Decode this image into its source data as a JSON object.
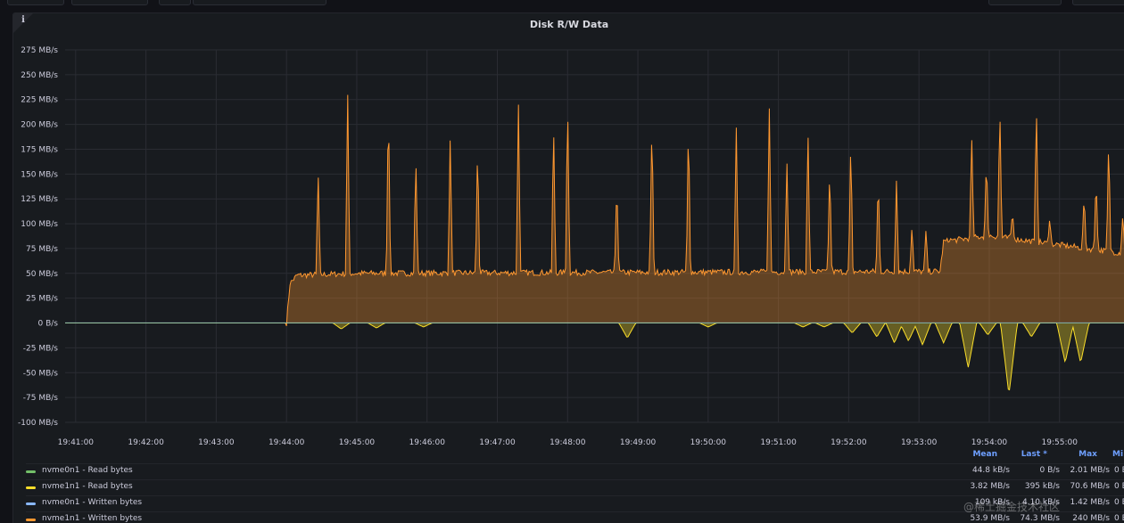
{
  "panel": {
    "title": "Disk R/W Data",
    "info_icon": "info-icon"
  },
  "watermark": "@稀土掘金技术社区",
  "legend": {
    "headers": [
      "Mean",
      "Last *",
      "Max",
      "Mi"
    ],
    "rows": [
      {
        "name": "nvme0n1 - Read bytes",
        "color": "#73bf69",
        "mean": "44.8 kB/s",
        "last": "0 B/s",
        "max": "2.01 MB/s",
        "min": "0 B/"
      },
      {
        "name": "nvme1n1 - Read bytes",
        "color": "#fade2a",
        "mean": "3.82 MB/s",
        "last": "395 kB/s",
        "max": "70.6 MB/s",
        "min": "0 B/"
      },
      {
        "name": "nvme0n1 - Written bytes",
        "color": "#8ab8ff",
        "mean": "109 kB/s",
        "last": "4.10 kB/s",
        "max": "1.42 MB/s",
        "min": "0 B/"
      },
      {
        "name": "nvme1n1 - Written bytes",
        "color": "#ff9830",
        "mean": "53.9 MB/s",
        "last": "74.3 MB/s",
        "max": "240 MB/s",
        "min": "0 B/"
      }
    ]
  },
  "chart_data": {
    "type": "area",
    "title": "Disk R/W Data",
    "ylim": [
      -100,
      275
    ],
    "y_ticks": [
      275,
      250,
      225,
      200,
      175,
      150,
      125,
      100,
      75,
      50,
      25,
      0,
      -25,
      -50,
      -75,
      -100
    ],
    "y_tick_labels": [
      "275 MB/s",
      "250 MB/s",
      "225 MB/s",
      "200 MB/s",
      "175 MB/s",
      "150 MB/s",
      "125 MB/s",
      "100 MB/s",
      "75 MB/s",
      "50 MB/s",
      "25 MB/s",
      "0 B/s",
      "-25 MB/s",
      "-50 MB/s",
      "-75 MB/s",
      "-100 MB/s"
    ],
    "x_tick_labels": [
      "19:41:00",
      "19:42:00",
      "19:43:00",
      "19:44:00",
      "19:45:00",
      "19:46:00",
      "19:47:00",
      "19:48:00",
      "19:49:00",
      "19:50:00",
      "19:51:00",
      "19:52:00",
      "19:53:00",
      "19:54:00",
      "19:55:00"
    ],
    "x_range_minutes": [
      40.85,
      55.93
    ],
    "x_tick_minutes": [
      41,
      42,
      43,
      44,
      45,
      46,
      47,
      48,
      49,
      50,
      51,
      52,
      53,
      54,
      55
    ],
    "grid": true,
    "legend_position": "bottom",
    "series": [
      {
        "name": "nvme1n1 - Written bytes",
        "color": "#ff9830",
        "base_segments": [
          [
            40.85,
            0
          ],
          [
            44.0,
            0
          ],
          [
            44.05,
            40
          ],
          [
            44.15,
            48
          ],
          [
            45.0,
            50
          ],
          [
            53.3,
            52
          ],
          [
            53.35,
            82
          ],
          [
            54.0,
            88
          ],
          [
            55.93,
            70
          ]
        ],
        "spikes": [
          [
            44.45,
            155
          ],
          [
            44.87,
            238
          ],
          [
            45.45,
            228
          ],
          [
            45.84,
            168
          ],
          [
            46.33,
            188
          ],
          [
            46.72,
            183
          ],
          [
            47.3,
            225
          ],
          [
            47.8,
            205
          ],
          [
            48.0,
            230
          ],
          [
            48.7,
            145
          ],
          [
            49.2,
            210
          ],
          [
            49.72,
            208
          ],
          [
            50.4,
            200
          ],
          [
            50.87,
            217
          ],
          [
            51.12,
            165
          ],
          [
            51.42,
            200
          ],
          [
            51.73,
            160
          ],
          [
            52.03,
            185
          ],
          [
            52.42,
            150
          ],
          [
            52.68,
            145
          ],
          [
            52.9,
            98
          ],
          [
            53.1,
            95
          ],
          [
            53.45,
            85
          ],
          [
            53.75,
            190
          ],
          [
            53.96,
            165
          ],
          [
            54.15,
            220
          ],
          [
            54.33,
            112
          ],
          [
            54.67,
            222
          ],
          [
            54.86,
            105
          ],
          [
            55.35,
            130
          ],
          [
            55.52,
            148
          ],
          [
            55.7,
            187
          ],
          [
            55.9,
            110
          ]
        ]
      },
      {
        "name": "nvme1n1 - Read bytes",
        "color": "#fade2a",
        "dips": [
          [
            44.78,
            -6
          ],
          [
            45.28,
            -5
          ],
          [
            45.95,
            -4
          ],
          [
            48.85,
            -15
          ],
          [
            50.0,
            -4
          ],
          [
            51.35,
            -4
          ],
          [
            51.65,
            -4
          ],
          [
            52.05,
            -10
          ],
          [
            52.4,
            -14
          ],
          [
            52.65,
            -20
          ],
          [
            52.85,
            -18
          ],
          [
            53.05,
            -22
          ],
          [
            53.35,
            -20
          ],
          [
            53.7,
            -45
          ],
          [
            53.98,
            -12
          ],
          [
            54.28,
            -72
          ],
          [
            54.6,
            -14
          ],
          [
            55.08,
            -40
          ],
          [
            55.3,
            -40
          ]
        ]
      },
      {
        "name": "nvme0n1 - Written bytes",
        "color": "#8ab8ff",
        "constant": 0.1
      },
      {
        "name": "nvme0n1 - Read bytes",
        "color": "#73bf69",
        "constant": 0
      }
    ]
  }
}
